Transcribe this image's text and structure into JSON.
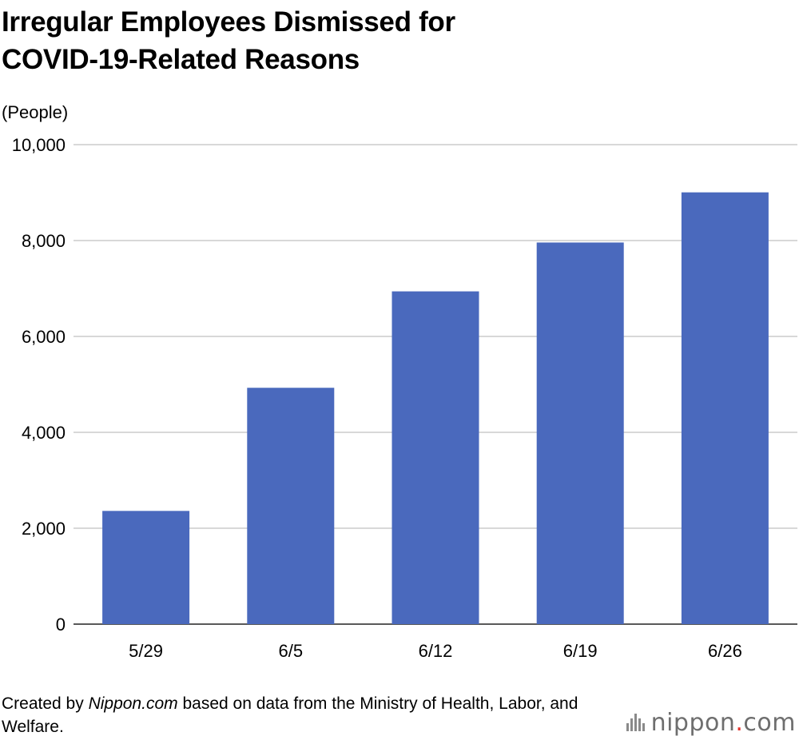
{
  "title": {
    "line1": "Irregular Employees Dismissed for",
    "line2": "COVID-19-Related Reasons"
  },
  "chart_data": {
    "type": "bar",
    "title": "Irregular Employees Dismissed for COVID-19-Related Reasons",
    "unit_label": "(People)",
    "xlabel": "",
    "ylabel": "(People)",
    "categories": [
      "5/29",
      "6/5",
      "6/12",
      "6/19",
      "6/26"
    ],
    "values": [
      2361,
      4929,
      6940,
      7959,
      9005
    ],
    "ylim": [
      0,
      10000
    ],
    "yticks": [
      0,
      2000,
      4000,
      6000,
      8000,
      10000
    ],
    "ytick_labels": [
      "0",
      "2,000",
      "4,000",
      "6,000",
      "8,000",
      "10,000"
    ],
    "grid": true,
    "legend": "none",
    "bar_color": "#4a69bd",
    "grid_color": "#cccccc"
  },
  "footer": {
    "prefix": "Created by ",
    "source_site": "Nippon.com",
    "suffix": " based on data from the Ministry of Health, Labor, and Welfare."
  },
  "logo": {
    "name": "nippon",
    "dot": ".",
    "tld": "com",
    "icon": "sound-bars-icon",
    "dot_color": "#e4322b"
  }
}
